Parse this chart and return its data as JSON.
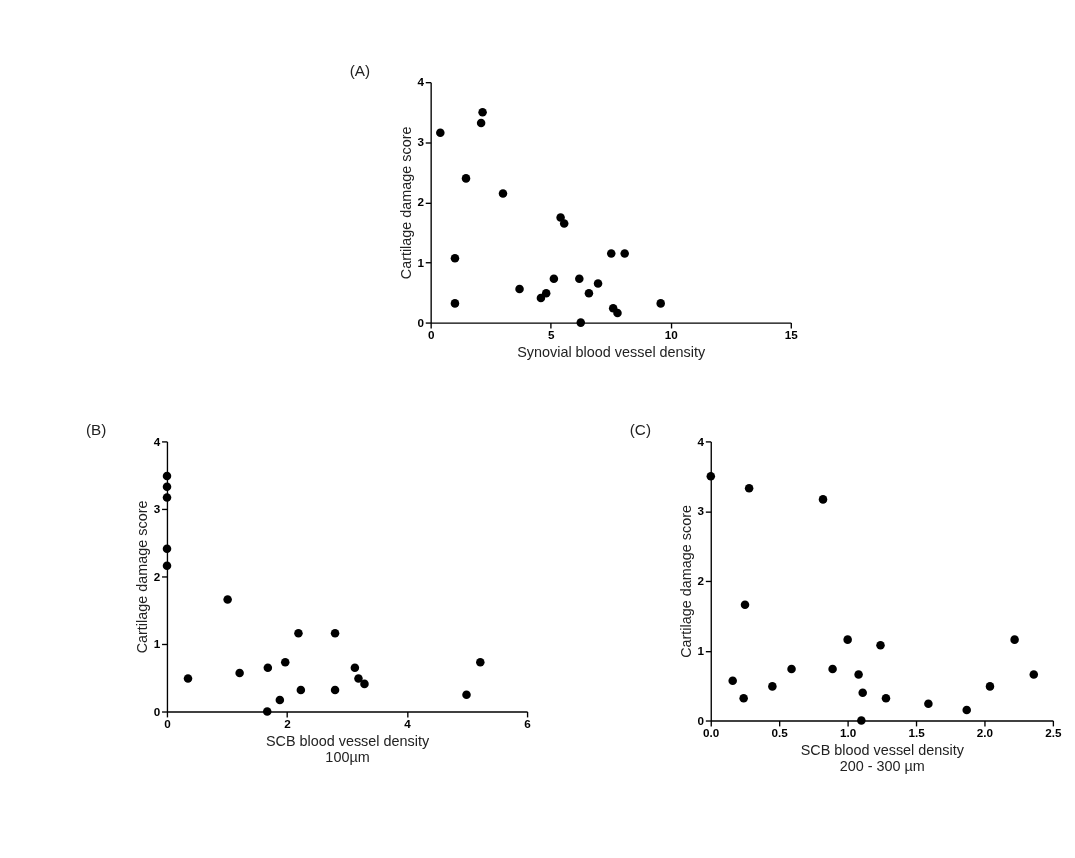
{
  "chart_data": [
    {
      "type": "scatter",
      "annotations": [
        "(A)"
      ],
      "xlabel": "Synovial blood vessel density",
      "ylabel": "Cartilage damage score",
      "marker": "circle",
      "grid": false,
      "color": "#000000",
      "x": [
        0.4,
        2.1,
        2.16,
        1.47,
        3.01,
        1.01,
        1.01,
        3.7,
        4.59,
        4.81,
        5.13,
        5.41,
        5.56,
        6.19,
        6.25,
        6.59,
        6.97,
        7.52,
        8.08,
        7.6,
        7.78,
        9.58
      ],
      "values": [
        3.16,
        3.32,
        3.5,
        2.4,
        2.15,
        1.07,
        0.32,
        0.56,
        0.41,
        0.49,
        0.73,
        1.75,
        1.65,
        0.73,
        0,
        0.49,
        0.65,
        1.15,
        1.15,
        0.24,
        0.16,
        0.32
      ],
      "xlim": [
        0,
        15
      ],
      "ylim": [
        0,
        4
      ],
      "xticks": [
        0,
        5,
        10,
        15
      ],
      "yticks": [
        0,
        1,
        2,
        3,
        4
      ]
    },
    {
      "type": "scatter",
      "annotations": [
        "(B)"
      ],
      "xlabel": "SCB blood vessel density\n100µm",
      "ylabel": "Cartilage damage score",
      "marker": "circle",
      "grid": false,
      "color": "#000000",
      "x": [
        0,
        0,
        0,
        0,
        0,
        0.35,
        1.01,
        1.21,
        1.68,
        1.97,
        2.19,
        2.23,
        2.8,
        2.8,
        3.13,
        3.19,
        3.29,
        4.99,
        5.22,
        1.67,
        1.88
      ],
      "values": [
        3.49,
        3.33,
        3.17,
        2.41,
        2.16,
        0.49,
        1.66,
        0.57,
        0.65,
        0.73,
        1.16,
        0.32,
        1.16,
        0.32,
        0.65,
        0.49,
        0.41,
        0.25,
        0.73,
        0,
        0.17
      ],
      "xlim": [
        0,
        6
      ],
      "ylim": [
        0,
        4
      ],
      "xticks": [
        0,
        2,
        4,
        6
      ],
      "yticks": [
        0,
        1,
        2,
        3,
        4
      ]
    },
    {
      "type": "scatter",
      "annotations": [
        "(C)"
      ],
      "xlabel": "SCB blood vessel density\n200 - 300 µm",
      "ylabel": "Cartilage damage score",
      "marker": "circle",
      "grid": false,
      "color": "#000000",
      "x": [
        0,
        0.28,
        0.82,
        0.25,
        0.16,
        0.24,
        0.45,
        0.59,
        0.89,
        1.0,
        1.08,
        1.11,
        1.1,
        1.24,
        1.28,
        1.59,
        1.87,
        2.04,
        2.22,
        2.36
      ],
      "values": [
        3.5,
        3.33,
        3.17,
        1.66,
        0.57,
        0.32,
        0.49,
        0.74,
        0.74,
        1.16,
        0.66,
        0.4,
        0,
        1.08,
        0.32,
        0.24,
        0.15,
        0.49,
        1.16,
        0.66
      ],
      "xlim": [
        0,
        2.5
      ],
      "ylim": [
        0,
        4
      ],
      "xticks": [
        {
          "value": 0,
          "label": "0.0"
        },
        {
          "value": 0.5,
          "label": "0.5"
        },
        {
          "value": 1,
          "label": "1.0"
        },
        {
          "value": 1.5,
          "label": "1.5"
        },
        {
          "value": 2,
          "label": "2.0"
        },
        {
          "value": 2.5,
          "label": "2.5"
        }
      ],
      "yticks": [
        0,
        1,
        2,
        3,
        4
      ]
    }
  ]
}
